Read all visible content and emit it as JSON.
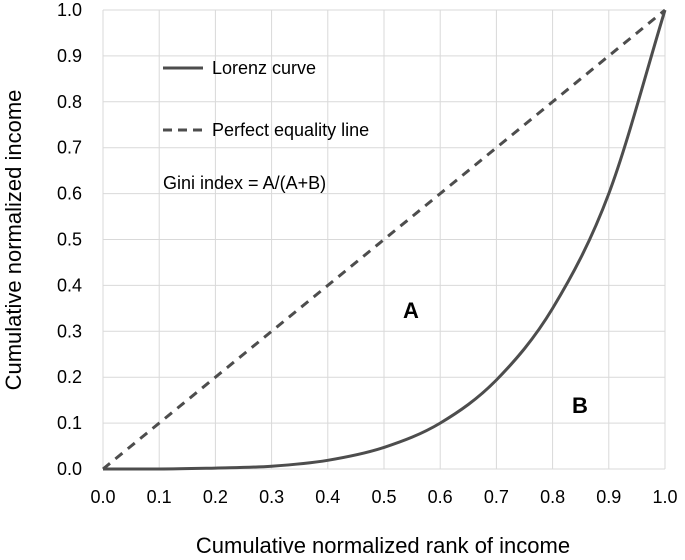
{
  "chart_data": {
    "type": "line",
    "xlabel": "Cumulative normalized rank of income",
    "ylabel": "Cumulative normalized income",
    "xlim": [
      0.0,
      1.0
    ],
    "ylim": [
      0.0,
      1.0
    ],
    "x_ticks": [
      "0.0",
      "0.1",
      "0.2",
      "0.3",
      "0.4",
      "0.5",
      "0.6",
      "0.7",
      "0.8",
      "0.9",
      "1.0"
    ],
    "y_ticks": [
      "0.0",
      "0.1",
      "0.2",
      "0.3",
      "0.4",
      "0.5",
      "0.6",
      "0.7",
      "0.8",
      "0.9",
      "1.0"
    ],
    "grid": true,
    "legend_position": "top-left",
    "series": [
      {
        "name": "Lorenz curve",
        "style": "solid",
        "color": "#4d4d4d",
        "x": [
          0.0,
          0.1,
          0.2,
          0.3,
          0.4,
          0.5,
          0.6,
          0.7,
          0.8,
          0.9,
          1.0
        ],
        "y": [
          0.0,
          0.0,
          0.002,
          0.006,
          0.019,
          0.047,
          0.1,
          0.194,
          0.35,
          0.6,
          1.0
        ]
      },
      {
        "name": "Perfect equality line",
        "style": "dashed",
        "color": "#4d4d4d",
        "x": [
          0.0,
          1.0
        ],
        "y": [
          0.0,
          1.0
        ]
      }
    ],
    "annotations": {
      "gini": "Gini index = A/(A+B)",
      "region_a": "A",
      "region_b": "B"
    }
  }
}
